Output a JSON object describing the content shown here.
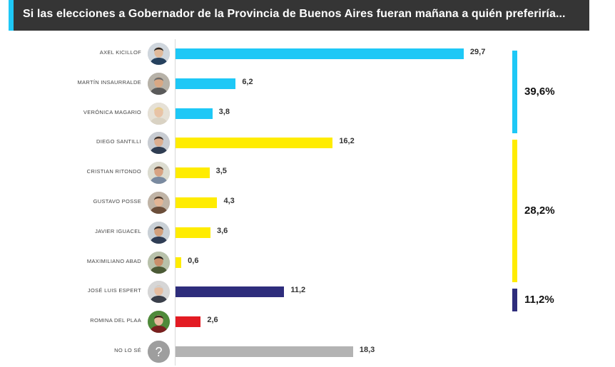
{
  "title": "Si las elecciones a Gobernador de la Provincia de Buenos Aires fueran mañana a quién preferiría...",
  "colors": {
    "title_bg": "#353535",
    "title_accent": "#1ec8f6",
    "frente_de_todos": "#1ec8f6",
    "juntos": "#ffec00",
    "avanza_libertad": "#2e2d7c",
    "izquierda": "#e31b23",
    "no_sabe": "#b3b3b3"
  },
  "chart_data": {
    "type": "bar",
    "orientation": "horizontal",
    "title": "Si las elecciones a Gobernador de la Provincia de Buenos Aires fueran mañana a quién preferiría...",
    "xlabel": "",
    "ylabel": "",
    "xlim": [
      0,
      30
    ],
    "grid": false,
    "categories": [
      "AXEL KICILLOF",
      "MARTÍN INSAURRALDE",
      "VERÓNICA MAGARIO",
      "DIEGO SANTILLI",
      "CRISTIAN RITONDO",
      "GUSTAVO POSSE",
      "JAVIER IGUACEL",
      "MAXIMILIANO ABAD",
      "JOSÉ LUIS ESPERT",
      "ROMINA DEL PLAA",
      "NO LO SÉ"
    ],
    "values": [
      29.7,
      6.2,
      3.8,
      16.2,
      3.5,
      4.3,
      3.6,
      0.6,
      11.2,
      2.6,
      18.3
    ],
    "value_labels": [
      "29,7",
      "6,2",
      "3,8",
      "16,2",
      "3,5",
      "4,3",
      "3,6",
      "0,6",
      "11,2",
      "2,6",
      "18,3"
    ],
    "bar_colors": [
      "#1ec8f6",
      "#1ec8f6",
      "#1ec8f6",
      "#ffec00",
      "#ffec00",
      "#ffec00",
      "#ffec00",
      "#ffec00",
      "#2e2d7c",
      "#e31b23",
      "#b3b3b3"
    ],
    "avatars": [
      "person-photo",
      "person-photo",
      "person-photo",
      "person-photo",
      "person-photo",
      "person-photo",
      "person-photo",
      "person-photo",
      "person-photo",
      "person-photo",
      "question-mark-icon"
    ],
    "groups": [
      {
        "label": "39,6%",
        "value": 39.6,
        "color": "#1ec8f6",
        "first": 0,
        "last": 2
      },
      {
        "label": "28,2%",
        "value": 28.2,
        "color": "#ffec00",
        "first": 3,
        "last": 7
      },
      {
        "label": "11,2%",
        "value": 11.2,
        "color": "#2e2d7c",
        "first": 8,
        "last": 8
      }
    ]
  }
}
